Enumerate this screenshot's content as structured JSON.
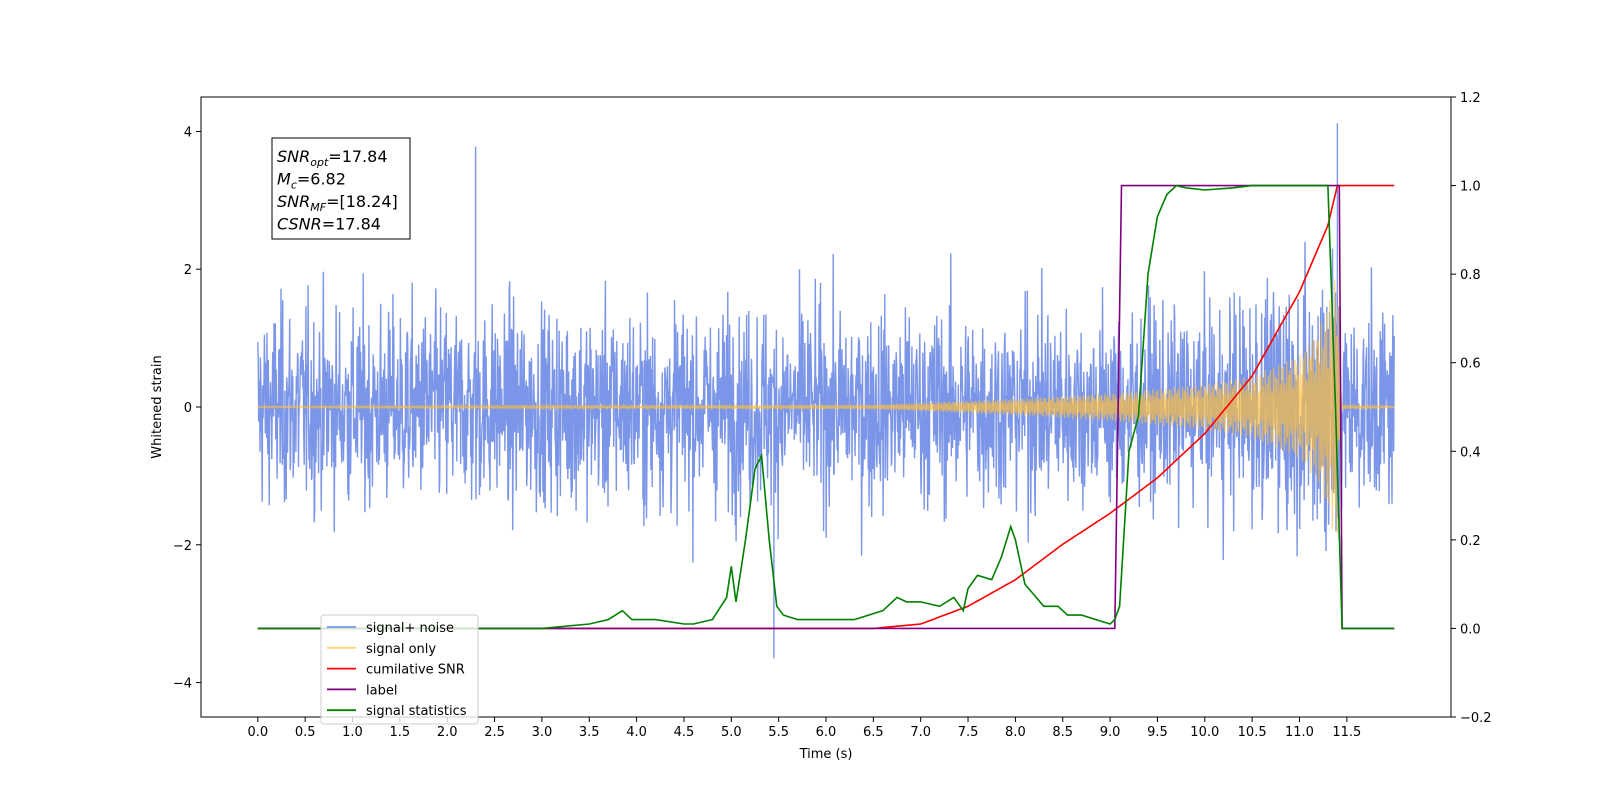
{
  "chart_data": {
    "type": "line",
    "title": "",
    "xlabel": "Time (s)",
    "ylabel_left": "Whitened strain",
    "ylabel_right": "",
    "xlim": [
      -0.6,
      12.6
    ],
    "ylim_left": [
      -4.5,
      4.5
    ],
    "ylim_right": [
      -0.2,
      1.2
    ],
    "grid": false,
    "legend_placement": "lower-left",
    "x_ticks": [
      "0.0",
      "0.5",
      "1.0",
      "1.5",
      "2.0",
      "2.5",
      "3.0",
      "3.5",
      "4.0",
      "4.5",
      "5.0",
      "5.5",
      "6.0",
      "6.5",
      "7.0",
      "7.5",
      "8.0",
      "8.5",
      "9.0",
      "9.5",
      "10.0",
      "10.5",
      "11.0",
      "11.5"
    ],
    "y_ticks_left": [
      "4",
      "2",
      "0",
      "−2",
      "−4"
    ],
    "y_ticks_right": [
      "1.2",
      "1.0",
      "0.8",
      "0.6",
      "0.4",
      "0.2",
      "0.0",
      "−0.2"
    ],
    "annotation": [
      {
        "sym": "SNR",
        "sub": "opt",
        "value": "=17.84"
      },
      {
        "sym": "M",
        "sub": "c",
        "value": "=6.82"
      },
      {
        "sym": "SNR",
        "sub": "MF",
        "value": "=[18.24]"
      },
      {
        "sym": "CSNR",
        "sub": "",
        "value": "=17.84"
      }
    ],
    "series": [
      {
        "name": "signal+ noise",
        "axis": "left",
        "color": "#7b96e8",
        "x_range": [
          0.0,
          12.0
        ],
        "noise_amplitude_approx": 2.4,
        "peak_values": [
          {
            "x": 2.3,
            "y": 3.78
          },
          {
            "x": 11.4,
            "y": 4.12
          },
          {
            "x": 5.45,
            "y": -3.65
          }
        ]
      },
      {
        "name": "signal only",
        "axis": "left",
        "color": "#ffbf40",
        "x_range": [
          0.0,
          12.0
        ],
        "envelope": [
          [
            0.0,
            0.01
          ],
          [
            6.5,
            0.03
          ],
          [
            7.0,
            0.06
          ],
          [
            8.0,
            0.12
          ],
          [
            9.0,
            0.2
          ],
          [
            10.0,
            0.33
          ],
          [
            10.5,
            0.45
          ],
          [
            11.0,
            0.75
          ],
          [
            11.2,
            1.1
          ],
          [
            11.3,
            1.5
          ],
          [
            11.35,
            1.8
          ],
          [
            11.4,
            1.9
          ],
          [
            11.45,
            0.03
          ],
          [
            12.0,
            0.01
          ]
        ]
      },
      {
        "name": "cumilative SNR",
        "axis": "right",
        "color": "#ff0000",
        "x": [
          0.0,
          6.5,
          7.0,
          7.5,
          8.0,
          8.5,
          9.0,
          9.5,
          10.0,
          10.5,
          11.0,
          11.3,
          11.4,
          11.45,
          12.0
        ],
        "y": [
          0.0,
          0.0,
          0.01,
          0.05,
          0.11,
          0.19,
          0.26,
          0.34,
          0.44,
          0.57,
          0.76,
          0.91,
          1.0,
          1.0,
          1.0
        ]
      },
      {
        "name": "label",
        "axis": "right",
        "color": "#800080",
        "x": [
          0.0,
          9.05,
          9.12,
          11.42,
          11.45,
          12.0
        ],
        "y": [
          0.0,
          0.0,
          1.0,
          1.0,
          0.0,
          0.0
        ]
      },
      {
        "name": "signal statistics",
        "axis": "right",
        "color": "#008000",
        "x": [
          0.0,
          2.5,
          3.0,
          3.5,
          3.7,
          3.85,
          3.95,
          4.05,
          4.2,
          4.5,
          4.6,
          4.8,
          4.95,
          5.0,
          5.05,
          5.15,
          5.25,
          5.32,
          5.4,
          5.48,
          5.55,
          5.7,
          5.9,
          6.1,
          6.3,
          6.6,
          6.75,
          6.85,
          7.0,
          7.2,
          7.35,
          7.45,
          7.5,
          7.6,
          7.75,
          7.85,
          7.95,
          8.0,
          8.1,
          8.3,
          8.45,
          8.55,
          8.7,
          8.85,
          9.0,
          9.05,
          9.1,
          9.2,
          9.3,
          9.4,
          9.5,
          9.6,
          9.7,
          9.8,
          10.0,
          10.3,
          10.5,
          11.0,
          11.3,
          11.38,
          11.45,
          12.0
        ],
        "y": [
          0.0,
          0.0,
          0.0,
          0.01,
          0.02,
          0.04,
          0.02,
          0.02,
          0.02,
          0.01,
          0.01,
          0.02,
          0.07,
          0.14,
          0.06,
          0.2,
          0.36,
          0.39,
          0.2,
          0.05,
          0.03,
          0.02,
          0.02,
          0.02,
          0.02,
          0.04,
          0.07,
          0.06,
          0.06,
          0.05,
          0.07,
          0.04,
          0.09,
          0.12,
          0.11,
          0.16,
          0.23,
          0.2,
          0.1,
          0.05,
          0.05,
          0.03,
          0.03,
          0.02,
          0.01,
          0.02,
          0.05,
          0.4,
          0.48,
          0.8,
          0.93,
          0.98,
          1.0,
          0.995,
          0.99,
          0.995,
          1.0,
          1.0,
          1.0,
          0.5,
          0.0,
          0.0
        ]
      }
    ]
  }
}
